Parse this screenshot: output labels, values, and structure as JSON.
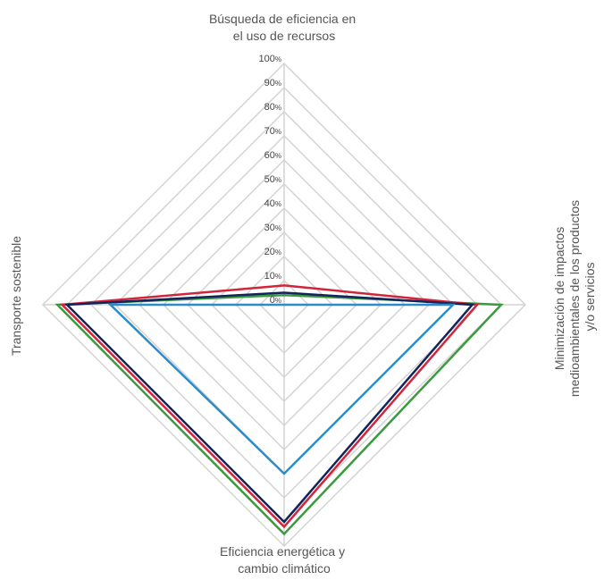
{
  "chart_data": {
    "type": "radar",
    "axes": [
      {
        "label_lines": [
          "Búsqueda de eficiencia en",
          "el uso de recursos"
        ]
      },
      {
        "label_lines": [
          "Minimización de impactos",
          "medioambientales de los productos",
          "y/o servicios"
        ]
      },
      {
        "label_lines": [
          "Eficiencia energética y",
          "cambio climático"
        ]
      },
      {
        "label_lines": [
          "Transporte sostenible"
        ]
      }
    ],
    "ticks": [
      "0%",
      "10%",
      "20%",
      "30%",
      "40%",
      "50%",
      "60%",
      "70%",
      "80%",
      "90%",
      "100%"
    ],
    "range": [
      0,
      100
    ],
    "grid": true,
    "legend": "none",
    "series": [
      {
        "color": "#3a9a3e",
        "values": [
          4,
          90,
          95,
          94
        ]
      },
      {
        "color": "#d3253a",
        "values": [
          8,
          80,
          92,
          92
        ]
      },
      {
        "color": "#13235b",
        "values": [
          5,
          78,
          90,
          90
        ]
      },
      {
        "color": "#2e8bc9",
        "values": [
          0,
          70,
          70,
          72
        ]
      }
    ]
  }
}
